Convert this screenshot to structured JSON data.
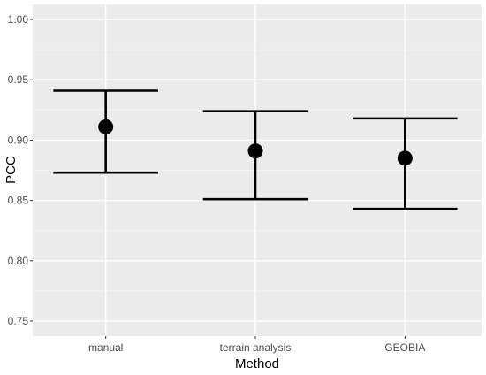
{
  "chart_data": {
    "type": "errorbar",
    "xlabel": "Method",
    "ylabel": "PCC",
    "categories": [
      "manual",
      "terrain analysis",
      "GEOBIA"
    ],
    "means": [
      0.911,
      0.891,
      0.885
    ],
    "lower": [
      0.873,
      0.851,
      0.843
    ],
    "upper": [
      0.941,
      0.924,
      0.918
    ],
    "ylim": [
      0.7375,
      1.0125
    ],
    "yticks": [
      "0.75",
      "0.80",
      "0.85",
      "0.90",
      "0.95",
      "1.00"
    ],
    "grid": true,
    "legend": "none",
    "colors": {
      "panel_bg": "#ebebeb",
      "grid_major": "#ffffff",
      "grid_minor": "#f5f5f5",
      "marks": "#000000"
    }
  }
}
